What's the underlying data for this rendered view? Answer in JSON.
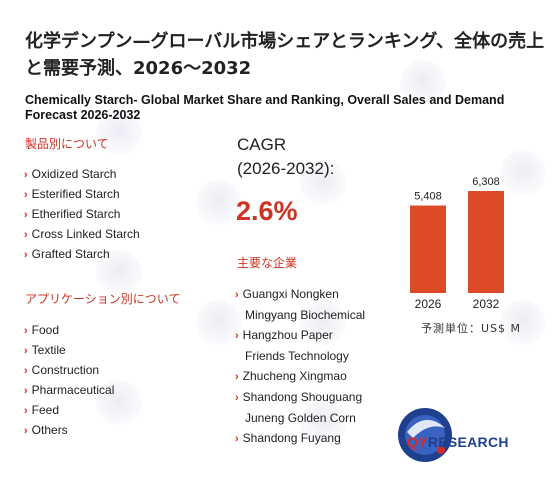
{
  "title_jp": "化学デンプン—グローバル市場シェアとランキング、全体の売上と需要予測、2026～2032",
  "title_en": "Chemically Starch- Global Market Share and Ranking, Overall Sales and Demand Forecast 2026-2032",
  "product_section": {
    "heading": "製品別について",
    "items": [
      "Oxidized Starch",
      "Esterified Starch",
      "Etherified Starch",
      "Cross Linked Starch",
      "Grafted Starch"
    ]
  },
  "application_section": {
    "heading": "アプリケーション別について",
    "items": [
      "Food",
      "Textile",
      "Construction",
      "Pharmaceutical",
      "Feed",
      "Others"
    ]
  },
  "cagr": {
    "label_line1": "CAGR",
    "label_line2": "(2026-2032):",
    "value": "2.6%"
  },
  "players_section": {
    "heading": "主要な企業",
    "items": [
      {
        "line1": "Guangxi Nongken",
        "line2": "Mingyang Biochemical"
      },
      {
        "line1": "Hangzhou Paper",
        "line2": "Friends Technology"
      },
      {
        "line1": "Zhucheng Xingmao",
        "line2": ""
      },
      {
        "line1": "Shandong Shouguang",
        "line2": "Juneng Golden Corn"
      },
      {
        "line1": "Shandong Fuyang",
        "line2": ""
      }
    ]
  },
  "unit_label": "予測単位：US$ M",
  "logo": {
    "brand_a": "QY",
    "brand_b": "RESEARCH"
  },
  "colors": {
    "accent": "#cc3322",
    "bar": "#dd4a26",
    "brand_blue": "#1f3f8f"
  },
  "chart_data": {
    "type": "bar",
    "categories": [
      "2026",
      "2032"
    ],
    "values": [
      5408,
      6308
    ],
    "value_labels": [
      "5,408",
      "6,308"
    ],
    "ylim": [
      0,
      6308
    ]
  }
}
